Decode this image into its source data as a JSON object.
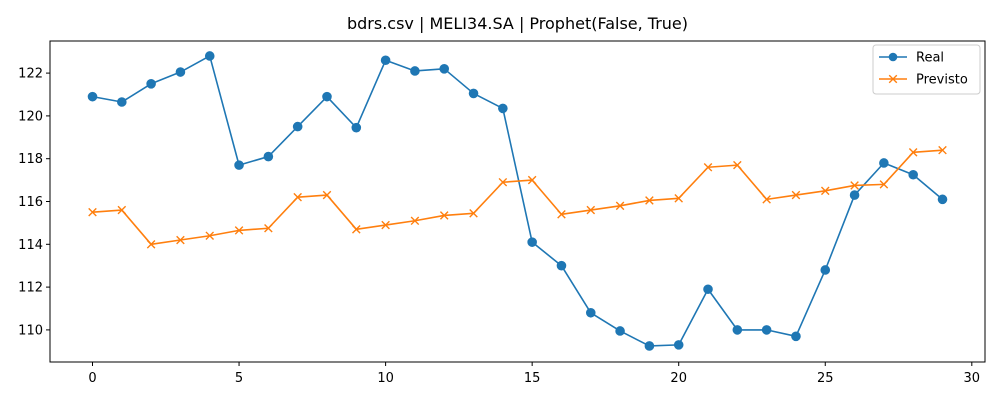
{
  "chart_data": {
    "type": "line",
    "title": "bdrs.csv | MELI34.SA | Prophet(False, True)",
    "xlabel": "",
    "ylabel": "",
    "x": [
      0,
      1,
      2,
      3,
      4,
      5,
      6,
      7,
      8,
      9,
      10,
      11,
      12,
      13,
      14,
      15,
      16,
      17,
      18,
      19,
      20,
      21,
      22,
      23,
      24,
      25,
      26,
      27,
      28,
      29
    ],
    "xlim": [
      -1.45,
      30.45
    ],
    "ylim": [
      108.5,
      123.5
    ],
    "xticks": [
      0,
      5,
      10,
      15,
      20,
      25,
      30
    ],
    "yticks": [
      110,
      112,
      114,
      116,
      118,
      120,
      122
    ],
    "grid": false,
    "legend_position": "top-right",
    "series": [
      {
        "name": "Real",
        "color": "#1f77b4",
        "marker": "circle",
        "values": [
          120.9,
          120.65,
          121.5,
          122.05,
          122.8,
          117.7,
          118.1,
          119.5,
          120.9,
          119.45,
          122.6,
          122.1,
          122.2,
          121.05,
          120.35,
          114.1,
          113.0,
          110.8,
          109.95,
          109.25,
          109.3,
          111.9,
          110.0,
          110.0,
          109.7,
          112.8,
          116.3,
          117.8,
          117.25,
          116.1
        ]
      },
      {
        "name": "Previsto",
        "color": "#ff7f0e",
        "marker": "x",
        "values": [
          115.5,
          115.6,
          114.0,
          114.2,
          114.4,
          114.65,
          114.75,
          116.2,
          116.3,
          114.7,
          114.9,
          115.1,
          115.35,
          115.45,
          116.9,
          117.0,
          115.4,
          115.6,
          115.8,
          116.05,
          116.15,
          117.6,
          117.7,
          116.1,
          116.3,
          116.5,
          116.75,
          116.8,
          118.3,
          118.4
        ]
      }
    ]
  }
}
